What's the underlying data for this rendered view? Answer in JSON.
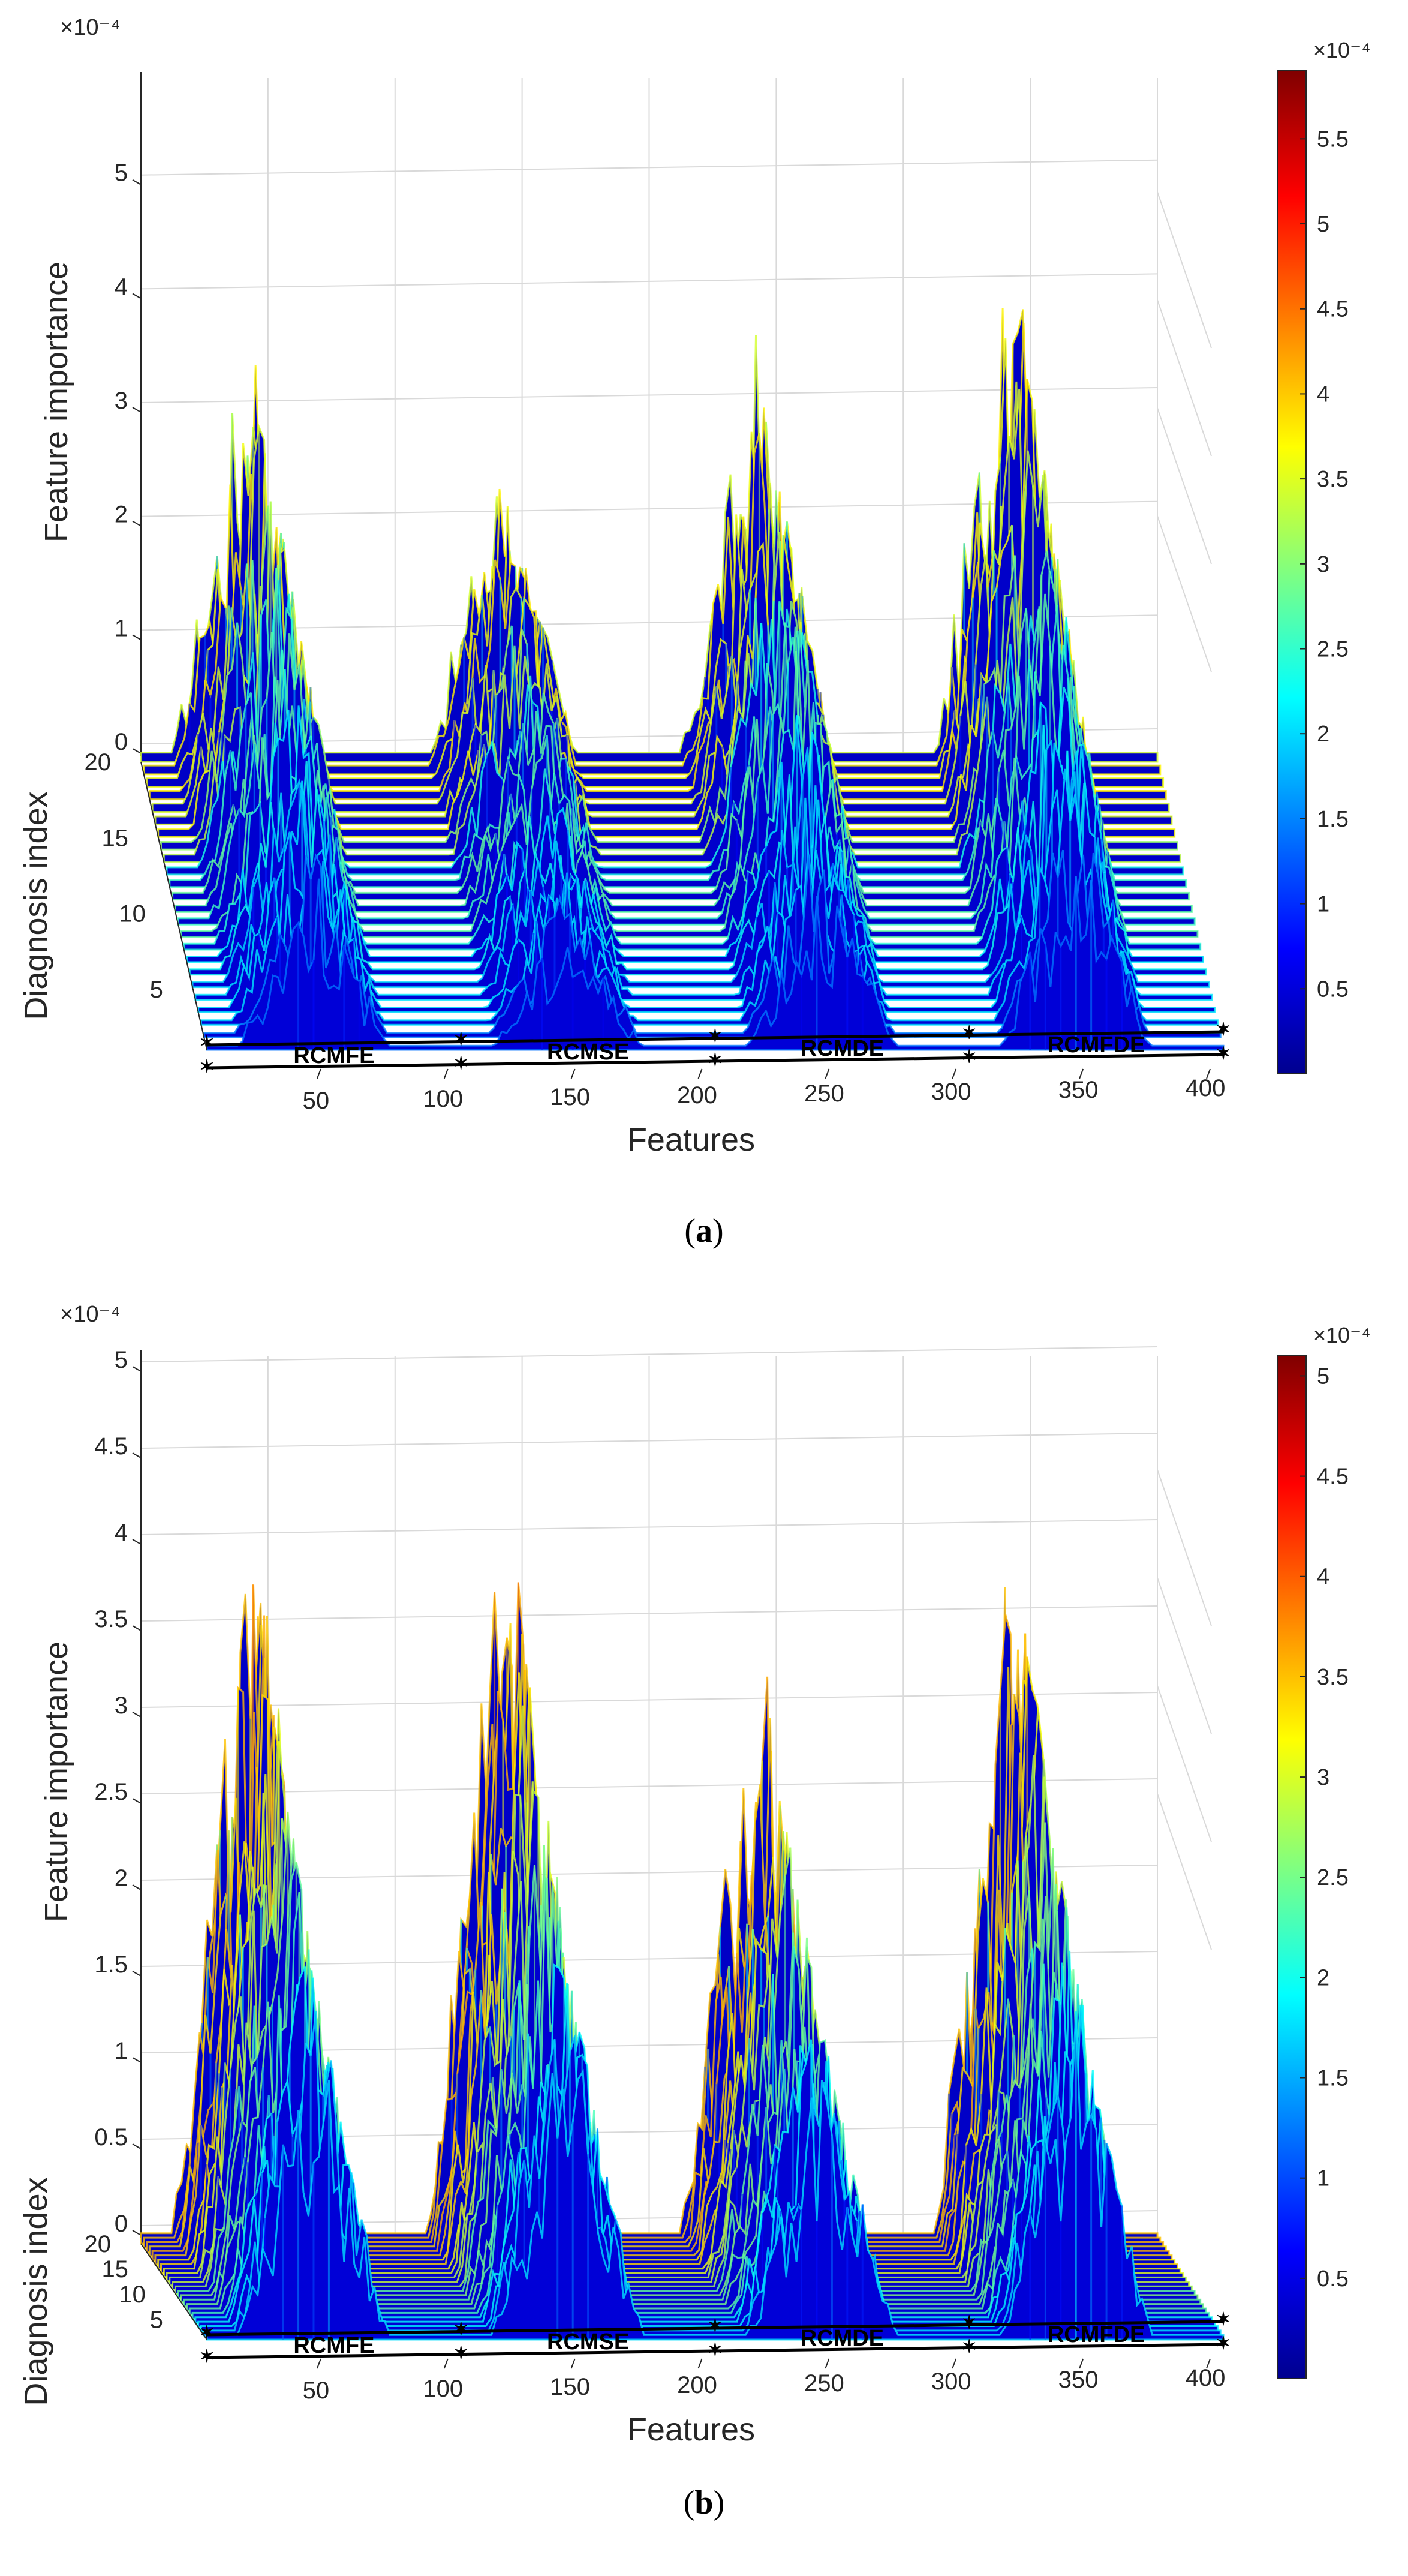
{
  "colors": {
    "grid": "#d9d9d9",
    "axis": "#262626",
    "base": "#0a0f8f",
    "colormap": [
      "#00008f",
      "#0000ff",
      "#0080ff",
      "#00ffff",
      "#80ff80",
      "#ffff00",
      "#ff8000",
      "#ff0000",
      "#800000"
    ]
  },
  "chart_data": [
    {
      "type": "surface",
      "panel_id": "a",
      "caption_letter": "a",
      "xlabel": "Features",
      "ylabel": "Diagnosis index",
      "zlabel": "Feature importance",
      "z_exponent": "×10⁻⁴",
      "xlim": [
        0,
        400
      ],
      "ylim": [
        1,
        20
      ],
      "zlim": [
        0,
        5.8
      ],
      "x_ticks": [
        50,
        100,
        150,
        200,
        250,
        300,
        350,
        400
      ],
      "x_tick_labels": [
        "50",
        "100",
        "150",
        "200",
        "250",
        "300",
        "350",
        "400"
      ],
      "y_ticks": [
        5,
        10,
        15,
        20
      ],
      "y_tick_labels": [
        "5",
        "10",
        "15",
        "20"
      ],
      "z_ticks": [
        0,
        1,
        2,
        3,
        4,
        5
      ],
      "z_tick_labels": [
        "0",
        "1",
        "2",
        "3",
        "4",
        "5"
      ],
      "groups": [
        {
          "name": "RCMFE",
          "range": [
            0,
            100
          ]
        },
        {
          "name": "RCMSE",
          "range": [
            100,
            200
          ]
        },
        {
          "name": "RCMDE",
          "range": [
            200,
            300
          ]
        },
        {
          "name": "RCMFDE",
          "range": [
            300,
            400
          ]
        }
      ],
      "group_centers": [
        50,
        150,
        250,
        350
      ],
      "group_peaks": [
        4.0,
        2.9,
        3.9,
        4.9
      ],
      "baseline": 0.08,
      "colorbar": {
        "min": 0,
        "max": 5.9,
        "exponent": "×10⁻⁴",
        "ticks": [
          0.5,
          1,
          1.5,
          2,
          2.5,
          3,
          3.5,
          4,
          4.5,
          5,
          5.5
        ],
        "tick_labels": [
          "0.5",
          "1",
          "1.5",
          "2",
          "2.5",
          "3",
          "3.5",
          "4",
          "4.5",
          "5",
          "5.5"
        ]
      }
    },
    {
      "type": "surface",
      "panel_id": "b",
      "caption_letter": "b",
      "xlabel": "Features",
      "ylabel": "Diagnosis index",
      "zlabel": "Feature importance",
      "z_exponent": "×10⁻⁴",
      "xlim": [
        0,
        400
      ],
      "ylim": [
        1,
        20
      ],
      "zlim": [
        0,
        5
      ],
      "x_ticks": [
        50,
        100,
        150,
        200,
        250,
        300,
        350,
        400
      ],
      "x_tick_labels": [
        "50",
        "100",
        "150",
        "200",
        "250",
        "300",
        "350",
        "400"
      ],
      "y_ticks": [
        5,
        10,
        15,
        20
      ],
      "y_tick_labels": [
        "5",
        "10",
        "15",
        "20"
      ],
      "z_ticks": [
        0,
        0.5,
        1,
        1.5,
        2,
        2.5,
        3,
        3.5,
        4,
        4.5,
        5
      ],
      "z_tick_labels": [
        "0",
        "0.5",
        "1",
        "1.5",
        "2",
        "2.5",
        "3",
        "3.5",
        "4",
        "4.5",
        "5"
      ],
      "groups": [
        {
          "name": "RCMFE",
          "range": [
            0,
            100
          ]
        },
        {
          "name": "RCMSE",
          "range": [
            100,
            200
          ]
        },
        {
          "name": "RCMDE",
          "range": [
            200,
            300
          ]
        },
        {
          "name": "RCMFDE",
          "range": [
            300,
            400
          ]
        }
      ],
      "group_centers": [
        50,
        150,
        250,
        350
      ],
      "group_peaks": [
        4.6,
        4.7,
        3.8,
        4.5
      ],
      "baseline": 0.06,
      "colorbar": {
        "min": 0,
        "max": 5.1,
        "exponent": "×10⁻⁴",
        "ticks": [
          0.5,
          1,
          1.5,
          2,
          2.5,
          3,
          3.5,
          4,
          4.5,
          5
        ],
        "tick_labels": [
          "0.5",
          "1",
          "1.5",
          "2",
          "2.5",
          "3",
          "3.5",
          "4",
          "4.5",
          "5"
        ]
      }
    }
  ]
}
